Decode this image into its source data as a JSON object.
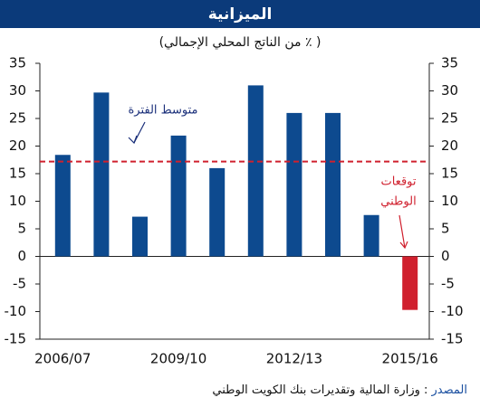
{
  "chart_data": {
    "type": "bar",
    "title": "الميزانية",
    "subtitle": "( ٪ من الناتج المحلي الإجمالي)",
    "categories": [
      "2006/07",
      null,
      null,
      "2009/10",
      null,
      null,
      "2012/13",
      null,
      null,
      "2015/16"
    ],
    "values": [
      18.4,
      29.7,
      7.2,
      21.9,
      16,
      31,
      26,
      26,
      7.5,
      -9.7
    ],
    "colors": [
      "#0d4a8f",
      "#0d4a8f",
      "#0d4a8f",
      "#0d4a8f",
      "#0d4a8f",
      "#0d4a8f",
      "#0d4a8f",
      "#0d4a8f",
      "#0d4a8f",
      "#d0202e"
    ],
    "ylim": [
      -15,
      35
    ],
    "yticks": [
      -15,
      -10,
      -5,
      0,
      5,
      10,
      15,
      20,
      25,
      30,
      35
    ],
    "grid": false,
    "reference_line": {
      "label": "متوسط الفترة",
      "value": 17.2,
      "color": "#d0202e"
    },
    "forecast_label": [
      "توقعات",
      "الوطني"
    ],
    "source": {
      "label": "المصدر",
      "text": ": وزارة المالية وتقديرات بنك الكويت الوطني"
    }
  }
}
